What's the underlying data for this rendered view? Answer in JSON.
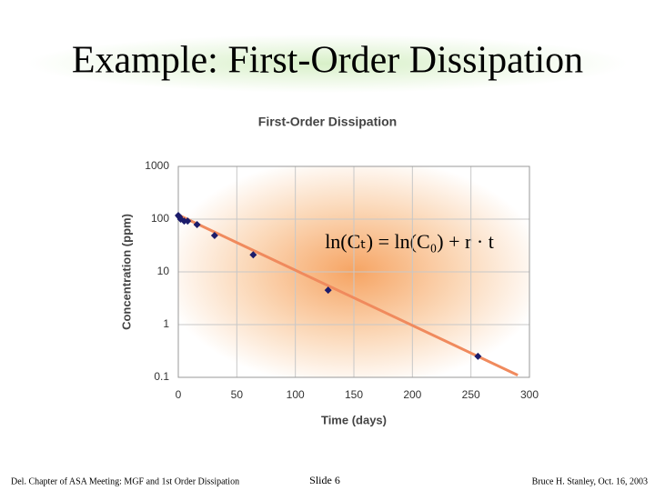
{
  "slide_title": "Example: First-Order Dissipation",
  "footer": {
    "left": "Del. Chapter of ASA Meeting: MGF and 1st Order Dissipation",
    "center": "Slide 6",
    "right": "Bruce H. Stanley, Oct. 16, 2003"
  },
  "chart_data": {
    "type": "scatter",
    "title": "First-Order Dissipation",
    "x_label": "Time (days)",
    "y_label": "Concentration (ppm)",
    "annotation": "ln(Cₜ) = ln(C₀) + r · t",
    "x": [
      0,
      1,
      2,
      5,
      8,
      16,
      31,
      64,
      128,
      256
    ],
    "series": [
      {
        "color": "#1c1c6b",
        "values": [
          117,
          110,
          100,
          92,
          92,
          79,
          49,
          21,
          4.5,
          0.25
        ]
      }
    ],
    "trendline": {
      "color": "#f08a5d",
      "x": [
        0,
        290
      ],
      "values": [
        120,
        0.11
      ]
    },
    "xlim": [
      0,
      300
    ],
    "xticks": [
      0,
      50,
      100,
      150,
      200,
      250,
      300
    ],
    "ylim": [
      0.1,
      1000
    ],
    "yticks": [
      0.1,
      1,
      10,
      100,
      1000
    ],
    "log_y": true,
    "grid": true
  }
}
